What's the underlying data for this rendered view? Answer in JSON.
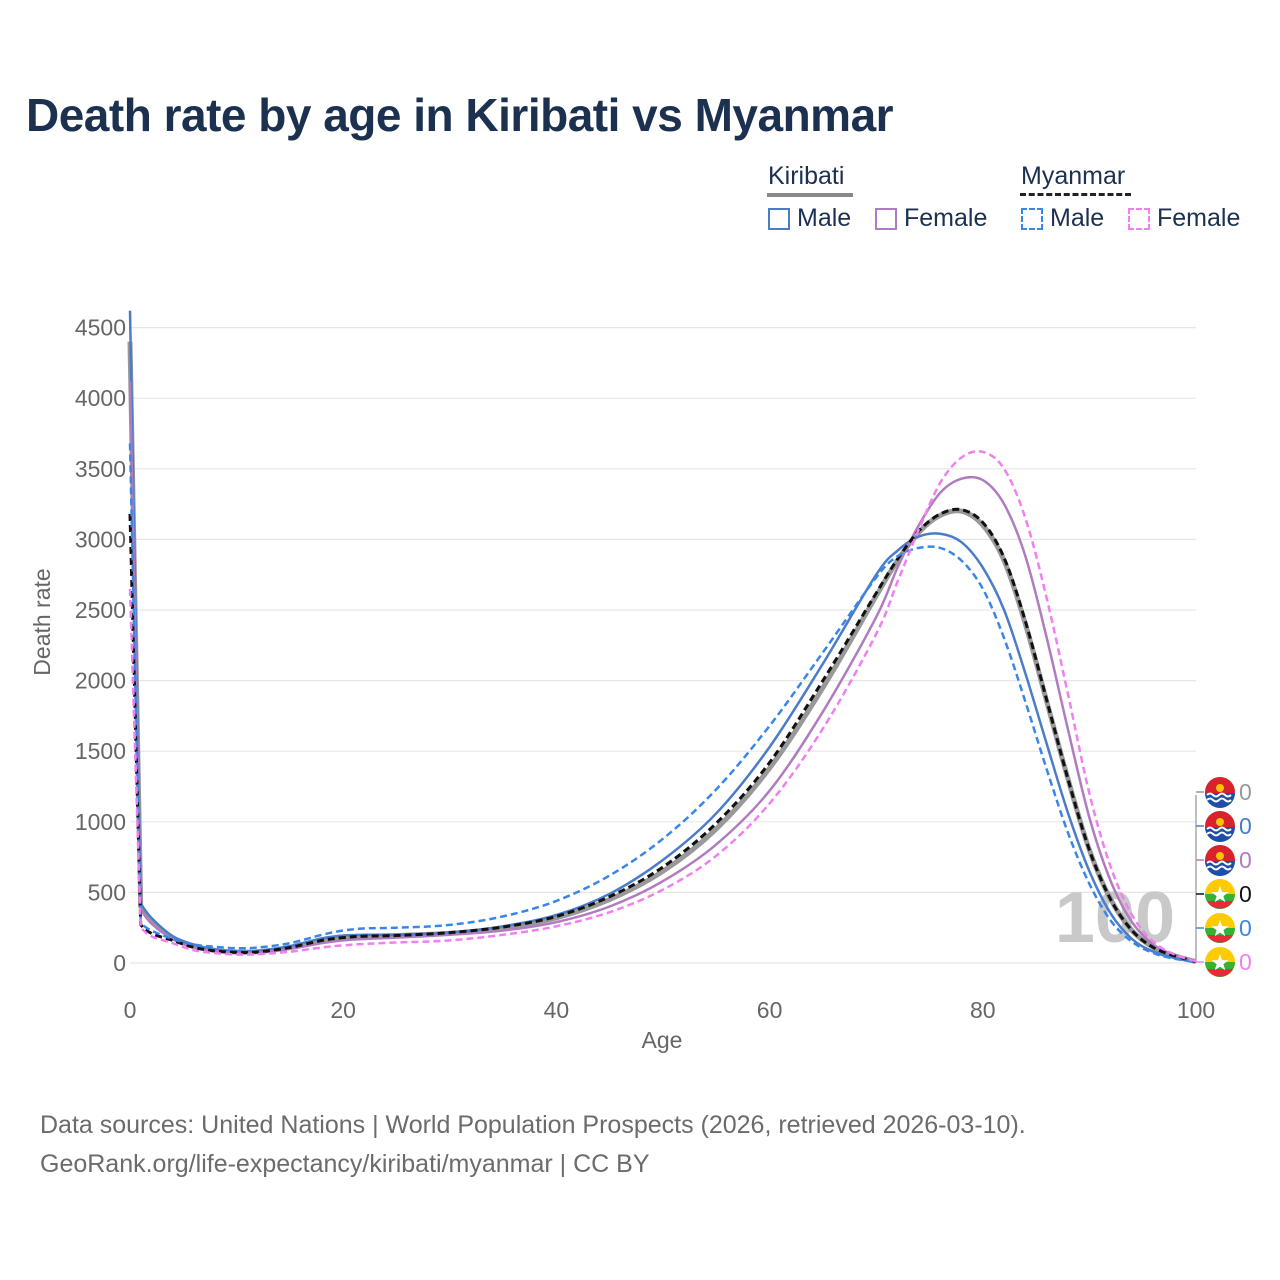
{
  "title": "Death rate by age in Kiribati vs Myanmar",
  "legend": {
    "groups": [
      {
        "name": "Kiribati",
        "style": "solid",
        "underline_color": "#888888",
        "items": [
          {
            "label": "Male",
            "color": "#4a7cc9"
          },
          {
            "label": "Female",
            "color": "#b07cc0"
          }
        ]
      },
      {
        "name": "Myanmar",
        "style": "dashed",
        "underline_color": "#222222",
        "items": [
          {
            "label": "Male",
            "color": "#3a86e8"
          },
          {
            "label": "Female",
            "color": "#f080f0"
          }
        ]
      }
    ]
  },
  "animation_label": "100",
  "end_markers": [
    {
      "country": "Kiribati",
      "value": "0",
      "color": "#999999"
    },
    {
      "country": "Kiribati",
      "value": "0",
      "color": "#4a7cc9"
    },
    {
      "country": "Kiribati",
      "value": "0",
      "color": "#b07cc0"
    },
    {
      "country": "Myanmar",
      "value": "0",
      "color": "#111111"
    },
    {
      "country": "Myanmar",
      "value": "0",
      "color": "#3a86e8"
    },
    {
      "country": "Myanmar",
      "value": "0",
      "color": "#f080f0"
    }
  ],
  "footer": {
    "line1": "Data sources: United Nations | World Population Prospects (2026, retrieved 2026-03-10).",
    "line2": "GeoRank.org/life-expectancy/kiribati/myanmar | CC BY"
  },
  "chart_data": {
    "type": "line",
    "xlabel": "Age",
    "ylabel": "Death rate",
    "xlim": [
      0,
      100
    ],
    "ylim": [
      0,
      4600
    ],
    "xticks": [
      0,
      20,
      40,
      60,
      80,
      100
    ],
    "yticks": [
      0,
      500,
      1000,
      1500,
      2000,
      2500,
      3000,
      3500,
      4000,
      4500
    ],
    "grid": true,
    "x": [
      0,
      1,
      2,
      4,
      6,
      8,
      10,
      12,
      15,
      18,
      20,
      22,
      25,
      30,
      35,
      40,
      45,
      50,
      55,
      60,
      65,
      70,
      72,
      74,
      76,
      78,
      80,
      82,
      84,
      86,
      88,
      90,
      92,
      94,
      96,
      98,
      100
    ],
    "series": [
      {
        "name": "Kiribati (both sexes)",
        "country": "Kiribati",
        "sex": "Total",
        "dash": "solid",
        "color": "#999999",
        "width": 5,
        "values": [
          4400,
          400,
          300,
          180,
          120,
          90,
          78,
          80,
          110,
          160,
          180,
          190,
          195,
          210,
          250,
          320,
          450,
          650,
          950,
          1380,
          1950,
          2600,
          2850,
          3050,
          3170,
          3200,
          3100,
          2850,
          2400,
          1850,
          1300,
          800,
          450,
          230,
          110,
          50,
          10
        ]
      },
      {
        "name": "Kiribati Male",
        "country": "Kiribati",
        "sex": "Male",
        "dash": "solid",
        "color": "#4a7cc9",
        "width": 2.5,
        "values": [
          4620,
          420,
          320,
          190,
          130,
          95,
          82,
          85,
          120,
          175,
          195,
          200,
          200,
          215,
          260,
          340,
          490,
          730,
          1060,
          1530,
          2120,
          2750,
          2920,
          3020,
          3040,
          2980,
          2800,
          2500,
          2050,
          1550,
          1060,
          650,
          350,
          170,
          80,
          35,
          8
        ]
      },
      {
        "name": "Kiribati Female",
        "country": "Kiribati",
        "sex": "Female",
        "dash": "solid",
        "color": "#b07cc0",
        "width": 2.5,
        "values": [
          4120,
          380,
          280,
          170,
          110,
          85,
          72,
          75,
          100,
          140,
          160,
          170,
          180,
          200,
          230,
          290,
          400,
          580,
          840,
          1220,
          1780,
          2450,
          2800,
          3100,
          3330,
          3430,
          3420,
          3250,
          2880,
          2300,
          1650,
          1030,
          580,
          290,
          130,
          55,
          12
        ]
      },
      {
        "name": "Myanmar (both sexes)",
        "country": "Myanmar",
        "sex": "Total",
        "dash": "dashed",
        "color": "#111111",
        "width": 3,
        "values": [
          3180,
          270,
          210,
          160,
          110,
          85,
          75,
          78,
          110,
          160,
          180,
          190,
          195,
          215,
          255,
          330,
          470,
          680,
          990,
          1420,
          2000,
          2620,
          2860,
          3060,
          3180,
          3210,
          3120,
          2870,
          2420,
          1860,
          1300,
          800,
          450,
          230,
          110,
          50,
          10
        ]
      },
      {
        "name": "Myanmar Male",
        "country": "Myanmar",
        "sex": "Male",
        "dash": "dashed",
        "color": "#3a86e8",
        "width": 2.5,
        "values": [
          3680,
          280,
          230,
          170,
          130,
          115,
          105,
          110,
          140,
          200,
          230,
          245,
          250,
          270,
          330,
          440,
          620,
          880,
          1230,
          1680,
          2200,
          2730,
          2880,
          2940,
          2940,
          2850,
          2650,
          2300,
          1850,
          1370,
          920,
          560,
          300,
          150,
          70,
          30,
          8
        ]
      },
      {
        "name": "Myanmar Female",
        "country": "Myanmar",
        "sex": "Female",
        "dash": "dashed",
        "color": "#f080f0",
        "width": 2.5,
        "values": [
          2650,
          250,
          190,
          140,
          90,
          70,
          60,
          62,
          80,
          110,
          125,
          135,
          145,
          160,
          200,
          260,
          360,
          520,
          760,
          1130,
          1660,
          2330,
          2700,
          3070,
          3400,
          3580,
          3620,
          3500,
          3150,
          2580,
          1900,
          1200,
          680,
          340,
          150,
          60,
          12
        ]
      }
    ]
  }
}
